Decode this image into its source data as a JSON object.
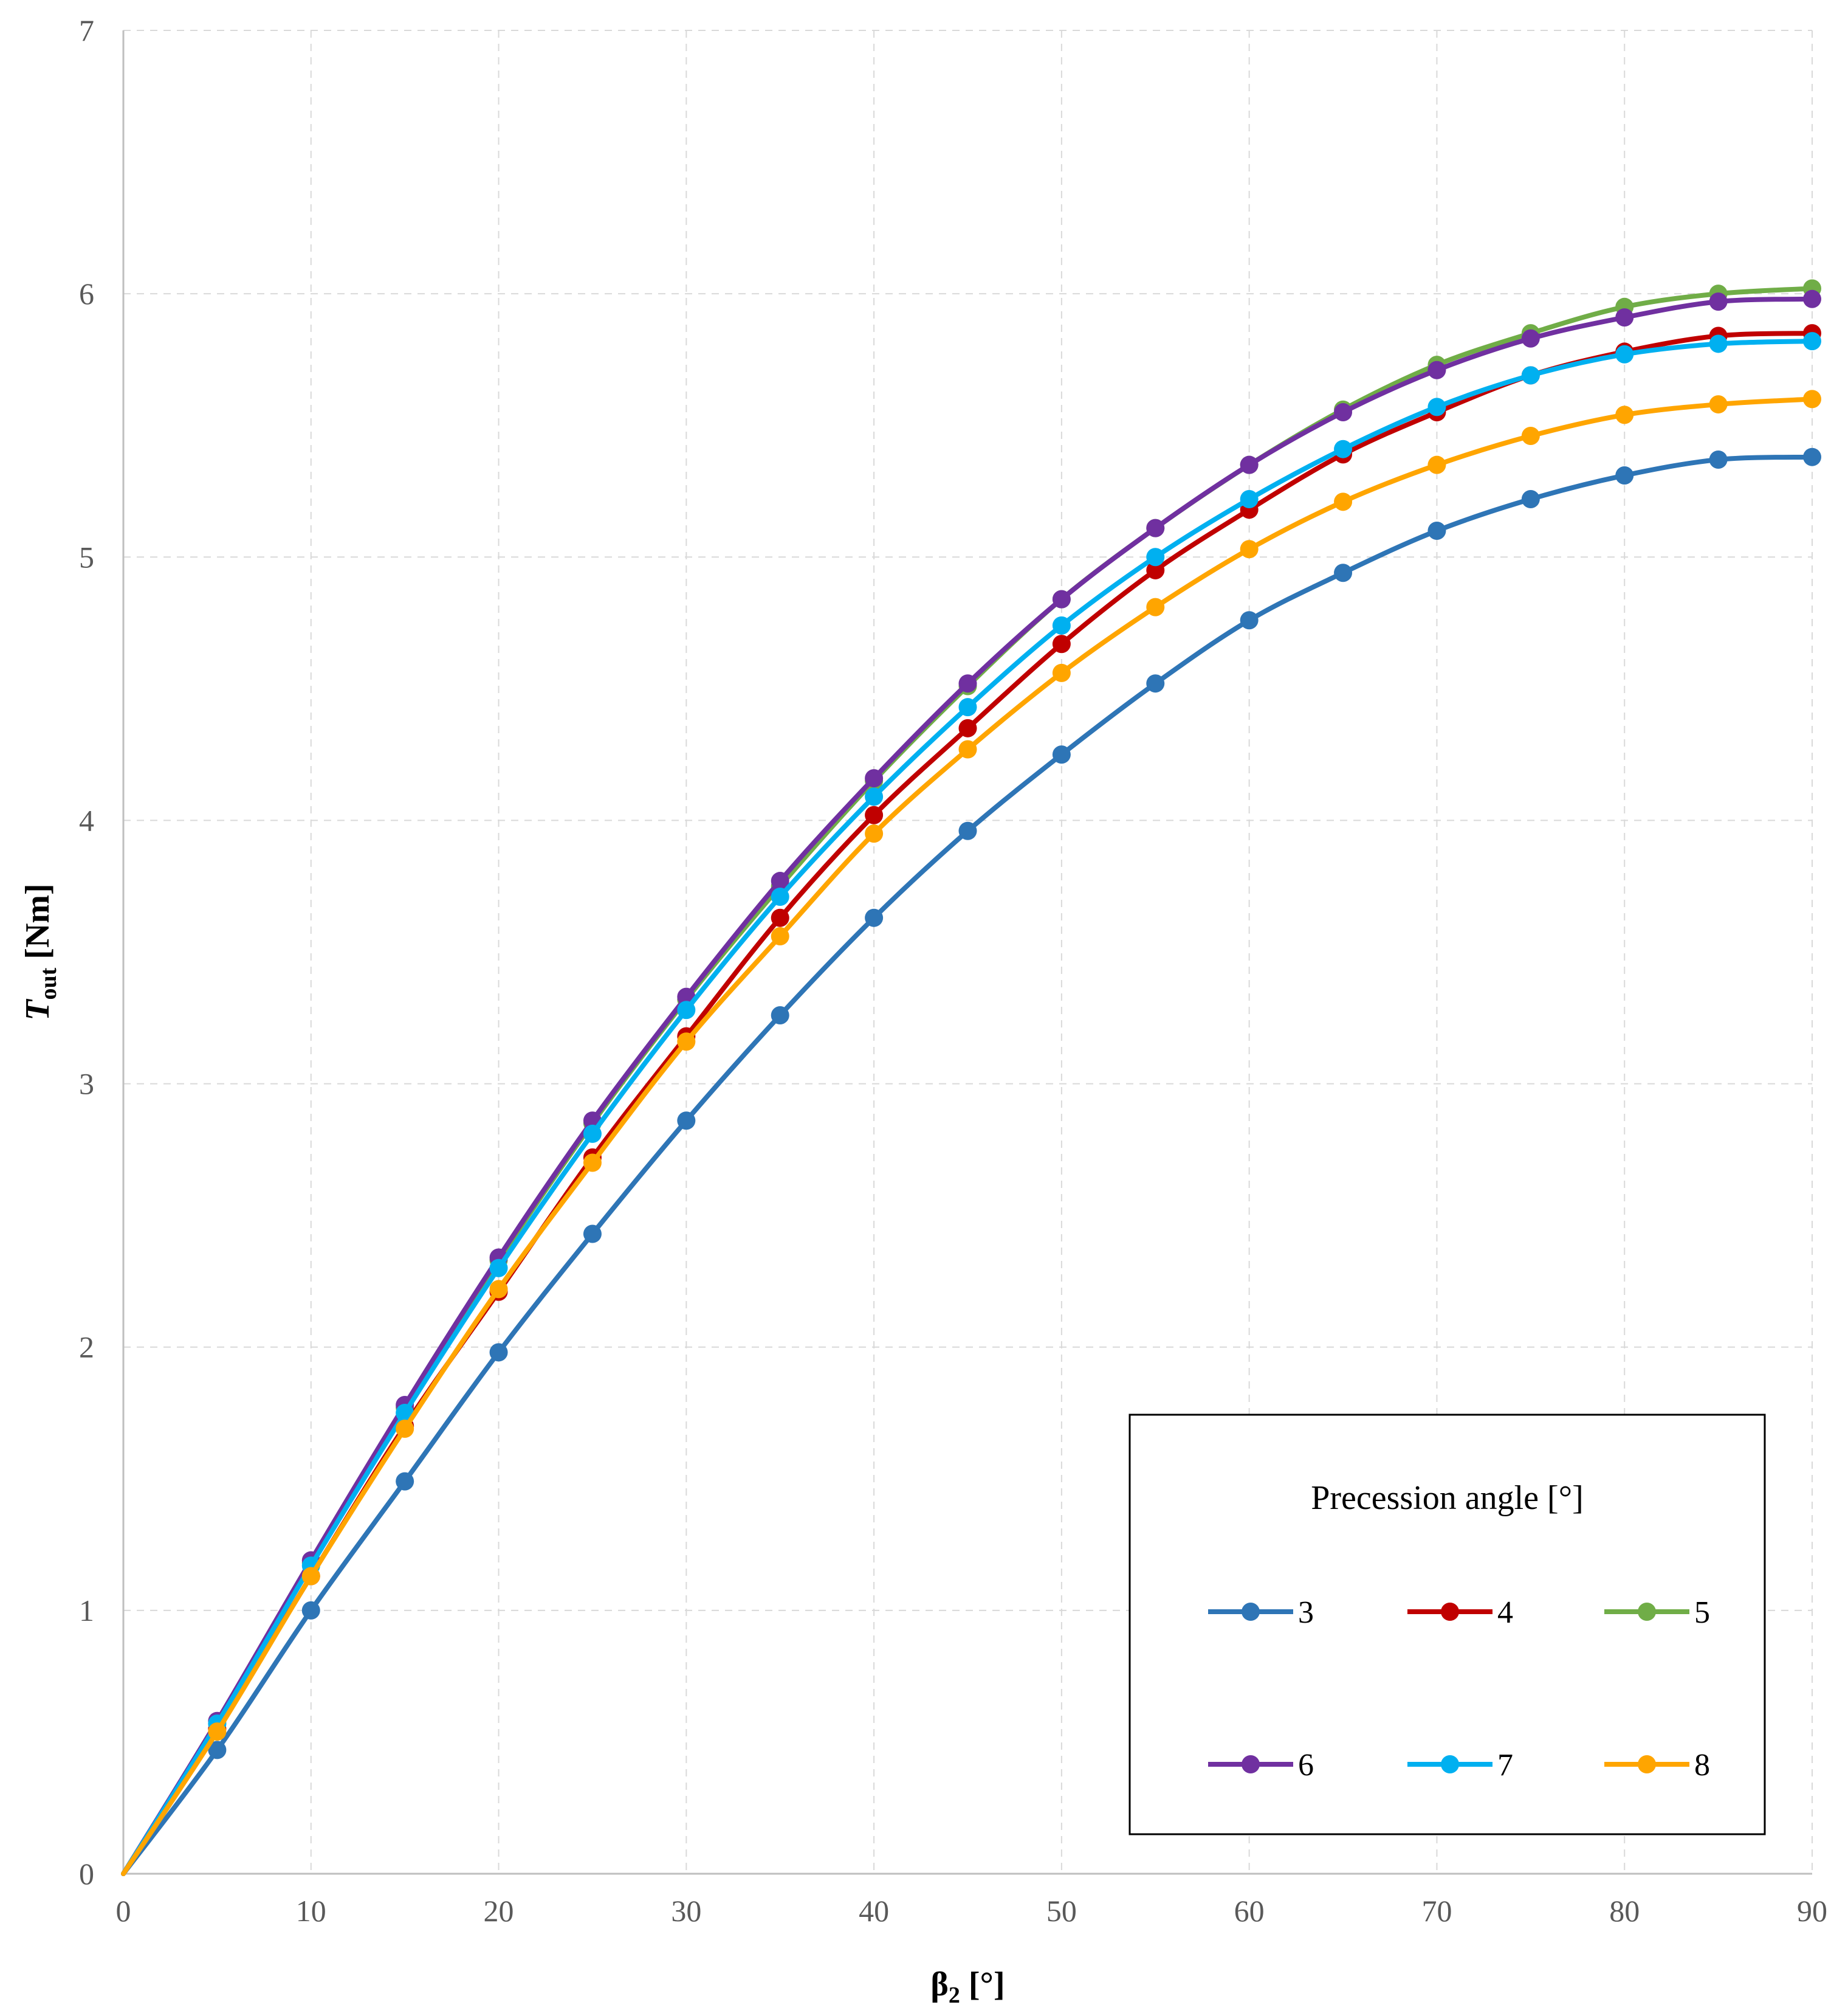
{
  "chart_data": {
    "type": "line",
    "title": "",
    "xlabel": "β₂ [°]",
    "ylabel": "Tout [Nm]",
    "ylabel_parts": {
      "symbol": "T",
      "subscript": "out",
      "unit": " [Nm]"
    },
    "xlabel_parts": {
      "symbol": "β",
      "subscript": "2",
      "unit": " [°]"
    },
    "xlim": [
      0,
      90
    ],
    "ylim": [
      0,
      7
    ],
    "xticks": [
      0,
      10,
      20,
      30,
      40,
      50,
      60,
      70,
      80,
      90
    ],
    "yticks": [
      0,
      1,
      2,
      3,
      4,
      5,
      6,
      7
    ],
    "grid": true,
    "legend": {
      "title": "Precession angle [°]",
      "placement": "bottom-right"
    },
    "x": [
      0,
      5,
      10,
      15,
      20,
      25,
      30,
      35,
      40,
      45,
      50,
      55,
      60,
      65,
      70,
      75,
      80,
      85,
      90
    ],
    "series": [
      {
        "name": "3",
        "color": "#2E75B6",
        "values": [
          0,
          0.47,
          1.0,
          1.49,
          1.98,
          2.43,
          2.86,
          3.26,
          3.63,
          3.96,
          4.25,
          4.52,
          4.76,
          4.94,
          5.1,
          5.22,
          5.31,
          5.37,
          5.38
        ]
      },
      {
        "name": "4",
        "color": "#C00000",
        "values": [
          0,
          0.55,
          1.13,
          1.7,
          2.21,
          2.72,
          3.18,
          3.63,
          4.02,
          4.35,
          4.67,
          4.95,
          5.18,
          5.39,
          5.55,
          5.69,
          5.78,
          5.84,
          5.85
        ]
      },
      {
        "name": "5",
        "color": "#70AD47",
        "values": [
          0,
          0.57,
          1.18,
          1.77,
          2.33,
          2.85,
          3.32,
          3.75,
          4.15,
          4.51,
          4.84,
          5.11,
          5.35,
          5.56,
          5.73,
          5.85,
          5.95,
          6.0,
          6.02
        ]
      },
      {
        "name": "6",
        "color": "#7030A0",
        "values": [
          0,
          0.58,
          1.19,
          1.78,
          2.34,
          2.86,
          3.33,
          3.77,
          4.16,
          4.52,
          4.84,
          5.11,
          5.35,
          5.55,
          5.71,
          5.83,
          5.91,
          5.97,
          5.98
        ]
      },
      {
        "name": "7",
        "color": "#00B0F0",
        "values": [
          0,
          0.57,
          1.17,
          1.75,
          2.3,
          2.81,
          3.28,
          3.71,
          4.09,
          4.43,
          4.74,
          5.0,
          5.22,
          5.41,
          5.57,
          5.69,
          5.77,
          5.81,
          5.82
        ]
      },
      {
        "name": "8",
        "color": "#FFA500",
        "values": [
          0,
          0.54,
          1.13,
          1.69,
          2.22,
          2.7,
          3.16,
          3.56,
          3.95,
          4.27,
          4.56,
          4.81,
          5.03,
          5.21,
          5.35,
          5.46,
          5.54,
          5.58,
          5.6
        ]
      }
    ]
  }
}
